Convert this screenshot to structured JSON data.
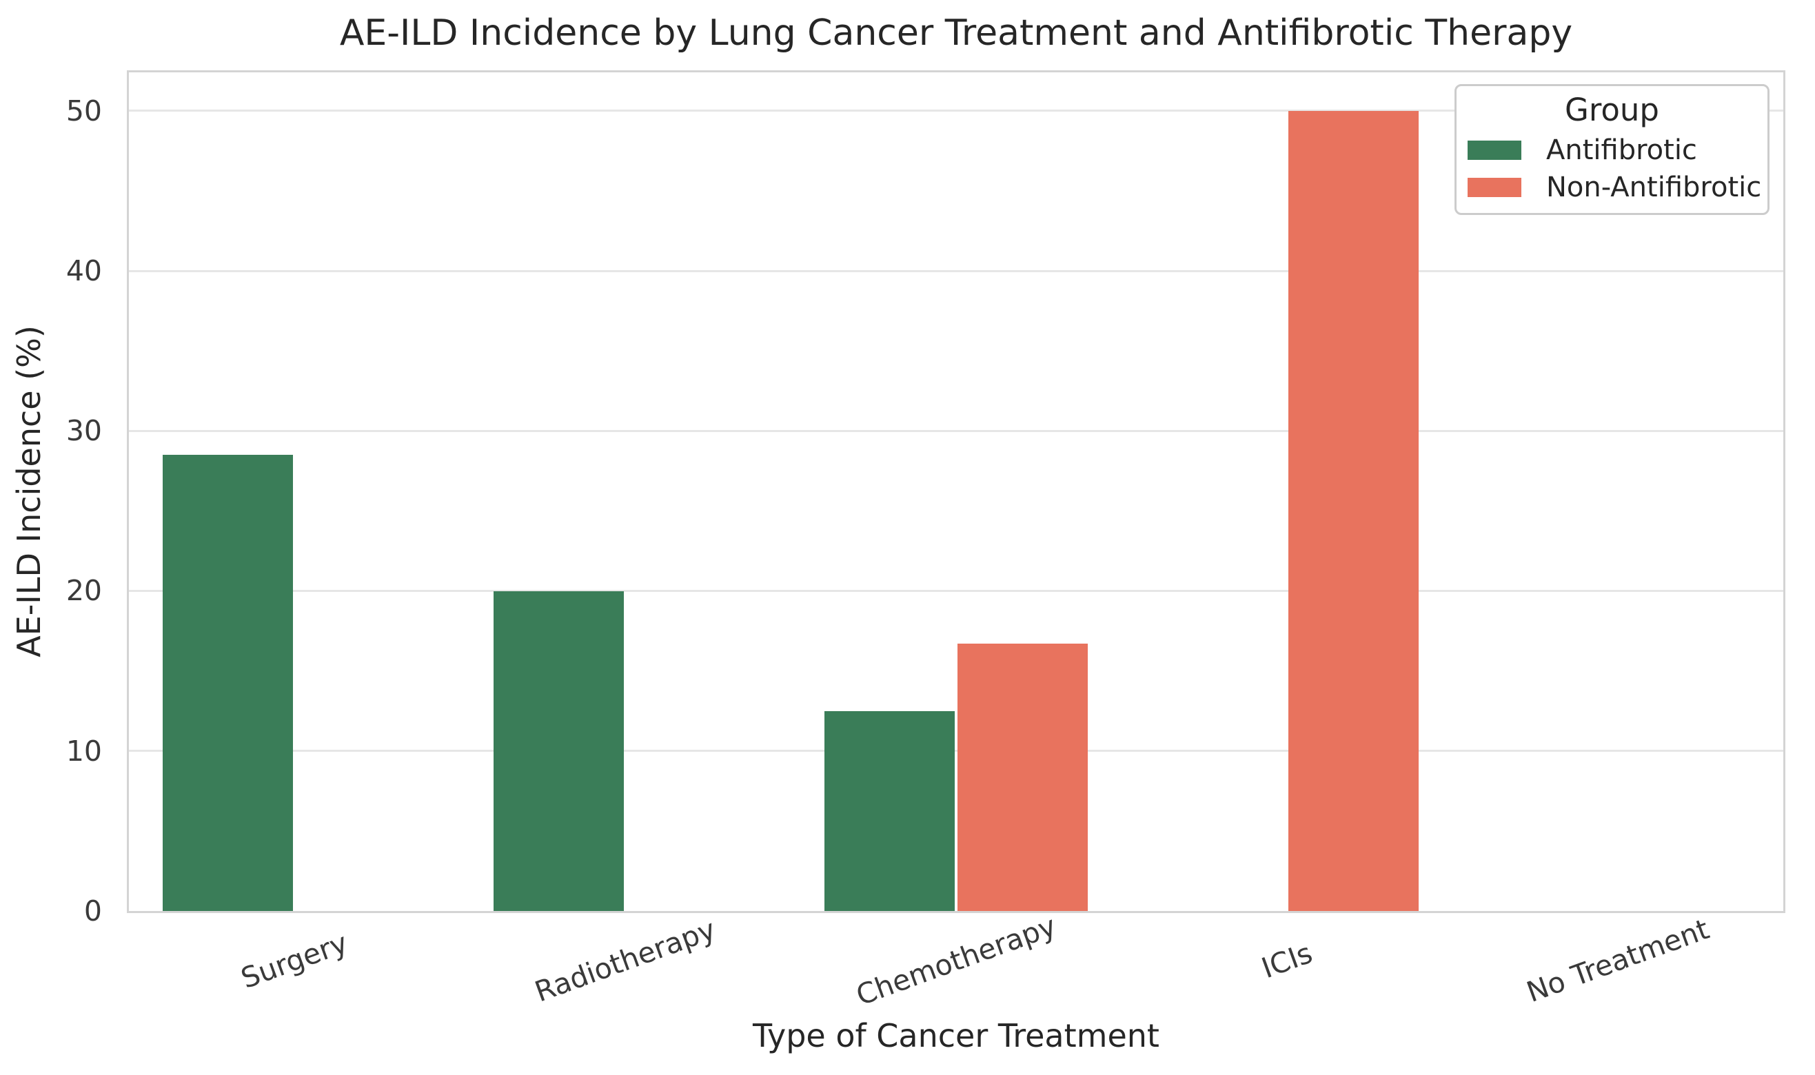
{
  "figure_title": "AE-ILD Incidence by Lung Cancer Treatment and Antifibrotic Therapy",
  "chart_data": {
    "type": "bar",
    "title": "AE-ILD Incidence by Lung Cancer Treatment and Antifibrotic Therapy",
    "xlabel": "Type of Cancer Treatment",
    "ylabel": "AE-ILD Incidence (%)",
    "categories": [
      "Surgery",
      "Radiotherapy",
      "Chemotherapy",
      "ICIs",
      "No Treatment"
    ],
    "series": [
      {
        "name": "Antifibrotic",
        "color": "#3a7d58",
        "values": [
          28.5,
          20.0,
          12.5,
          0,
          0
        ]
      },
      {
        "name": "Non-Antifibrotic",
        "color": "#e8735e",
        "values": [
          0,
          0,
          16.7,
          50.0,
          0
        ]
      }
    ],
    "yticks": [
      0,
      10,
      20,
      30,
      40,
      50
    ],
    "ylim": [
      0,
      52.4
    ],
    "grid": "horizontal",
    "legend": {
      "title": "Group",
      "position": "upper-right"
    }
  },
  "colors": {
    "antifibrotic_green": "#3a7d58",
    "non_antifibrotic_salmon": "#e8735e",
    "gridline": "#e6e6e6",
    "spine": "#d4d4d4",
    "text": "#262626",
    "tick_text": "#3a3a3a"
  }
}
